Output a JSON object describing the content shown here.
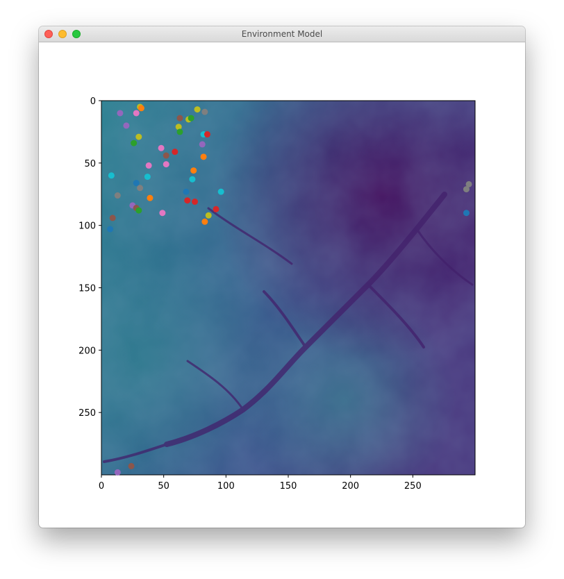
{
  "window": {
    "title": "Environment Model"
  },
  "chart_data": {
    "type": "heatmap",
    "title": "",
    "xlabel": "",
    "ylabel": "",
    "xlim": [
      0,
      300
    ],
    "ylim": [
      300,
      0
    ],
    "xticks": [
      "0",
      "50",
      "100",
      "150",
      "200",
      "250"
    ],
    "yticks": [
      "0",
      "50",
      "100",
      "150",
      "200",
      "250"
    ],
    "xtick_values": [
      0,
      50,
      100,
      150,
      200,
      250
    ],
    "ytick_values": [
      0,
      50,
      100,
      150,
      200,
      250
    ],
    "colormap": [
      "#440154",
      "#46327e",
      "#365c8d",
      "#277f8e",
      "#1fa187"
    ],
    "grid": false,
    "points": [
      {
        "x": 31,
        "y": 5,
        "color": "#bcbd22"
      },
      {
        "x": 32,
        "y": 6,
        "color": "#ff7f0e"
      },
      {
        "x": 15,
        "y": 10,
        "color": "#9467bd"
      },
      {
        "x": 28,
        "y": 10,
        "color": "#e377c2"
      },
      {
        "x": 77,
        "y": 7,
        "color": "#bcbd22"
      },
      {
        "x": 83,
        "y": 9,
        "color": "#7f7f7f"
      },
      {
        "x": 63,
        "y": 14,
        "color": "#8c564b"
      },
      {
        "x": 70,
        "y": 15,
        "color": "#bcbd22"
      },
      {
        "x": 72,
        "y": 14,
        "color": "#2ca02c"
      },
      {
        "x": 20,
        "y": 20,
        "color": "#9467bd"
      },
      {
        "x": 62,
        "y": 21,
        "color": "#bcbd22"
      },
      {
        "x": 63,
        "y": 25,
        "color": "#2ca02c"
      },
      {
        "x": 30,
        "y": 29,
        "color": "#bcbd22"
      },
      {
        "x": 82,
        "y": 27,
        "color": "#17becf"
      },
      {
        "x": 85,
        "y": 27,
        "color": "#d62728"
      },
      {
        "x": 26,
        "y": 34,
        "color": "#2ca02c"
      },
      {
        "x": 48,
        "y": 38,
        "color": "#e377c2"
      },
      {
        "x": 81,
        "y": 35,
        "color": "#9467bd"
      },
      {
        "x": 59,
        "y": 41,
        "color": "#d62728"
      },
      {
        "x": 52,
        "y": 44,
        "color": "#8c564b"
      },
      {
        "x": 82,
        "y": 45,
        "color": "#ff7f0e"
      },
      {
        "x": 52,
        "y": 51,
        "color": "#e377c2"
      },
      {
        "x": 38,
        "y": 52,
        "color": "#e377c2"
      },
      {
        "x": 74,
        "y": 56,
        "color": "#ff7f0e"
      },
      {
        "x": 8,
        "y": 60,
        "color": "#17becf"
      },
      {
        "x": 37,
        "y": 61,
        "color": "#17becf"
      },
      {
        "x": 73,
        "y": 63,
        "color": "#17becf"
      },
      {
        "x": 28,
        "y": 66,
        "color": "#1f77b4"
      },
      {
        "x": 31,
        "y": 70,
        "color": "#7f7f7f"
      },
      {
        "x": 68,
        "y": 73,
        "color": "#1f77b4"
      },
      {
        "x": 96,
        "y": 73,
        "color": "#17becf"
      },
      {
        "x": 13,
        "y": 76,
        "color": "#7f7f7f"
      },
      {
        "x": 39,
        "y": 78,
        "color": "#ff7f0e"
      },
      {
        "x": 69,
        "y": 80,
        "color": "#d62728"
      },
      {
        "x": 75,
        "y": 81,
        "color": "#d62728"
      },
      {
        "x": 25,
        "y": 84,
        "color": "#9467bd"
      },
      {
        "x": 28,
        "y": 86,
        "color": "#8c564b"
      },
      {
        "x": 30,
        "y": 88,
        "color": "#2ca02c"
      },
      {
        "x": 92,
        "y": 87,
        "color": "#d62728"
      },
      {
        "x": 49,
        "y": 90,
        "color": "#e377c2"
      },
      {
        "x": 86,
        "y": 92,
        "color": "#bcbd22"
      },
      {
        "x": 9,
        "y": 94,
        "color": "#8c564b"
      },
      {
        "x": 83,
        "y": 97,
        "color": "#ff7f0e"
      },
      {
        "x": 7,
        "y": 103,
        "color": "#1f77b4"
      },
      {
        "x": 295,
        "y": 67,
        "color": "#7f7f7f"
      },
      {
        "x": 293,
        "y": 71,
        "color": "#7f7f7f"
      },
      {
        "x": 293,
        "y": 90,
        "color": "#1f77b4"
      },
      {
        "x": 24,
        "y": 293,
        "color": "#8c564b"
      },
      {
        "x": 13,
        "y": 298,
        "color": "#9467bd"
      }
    ]
  }
}
